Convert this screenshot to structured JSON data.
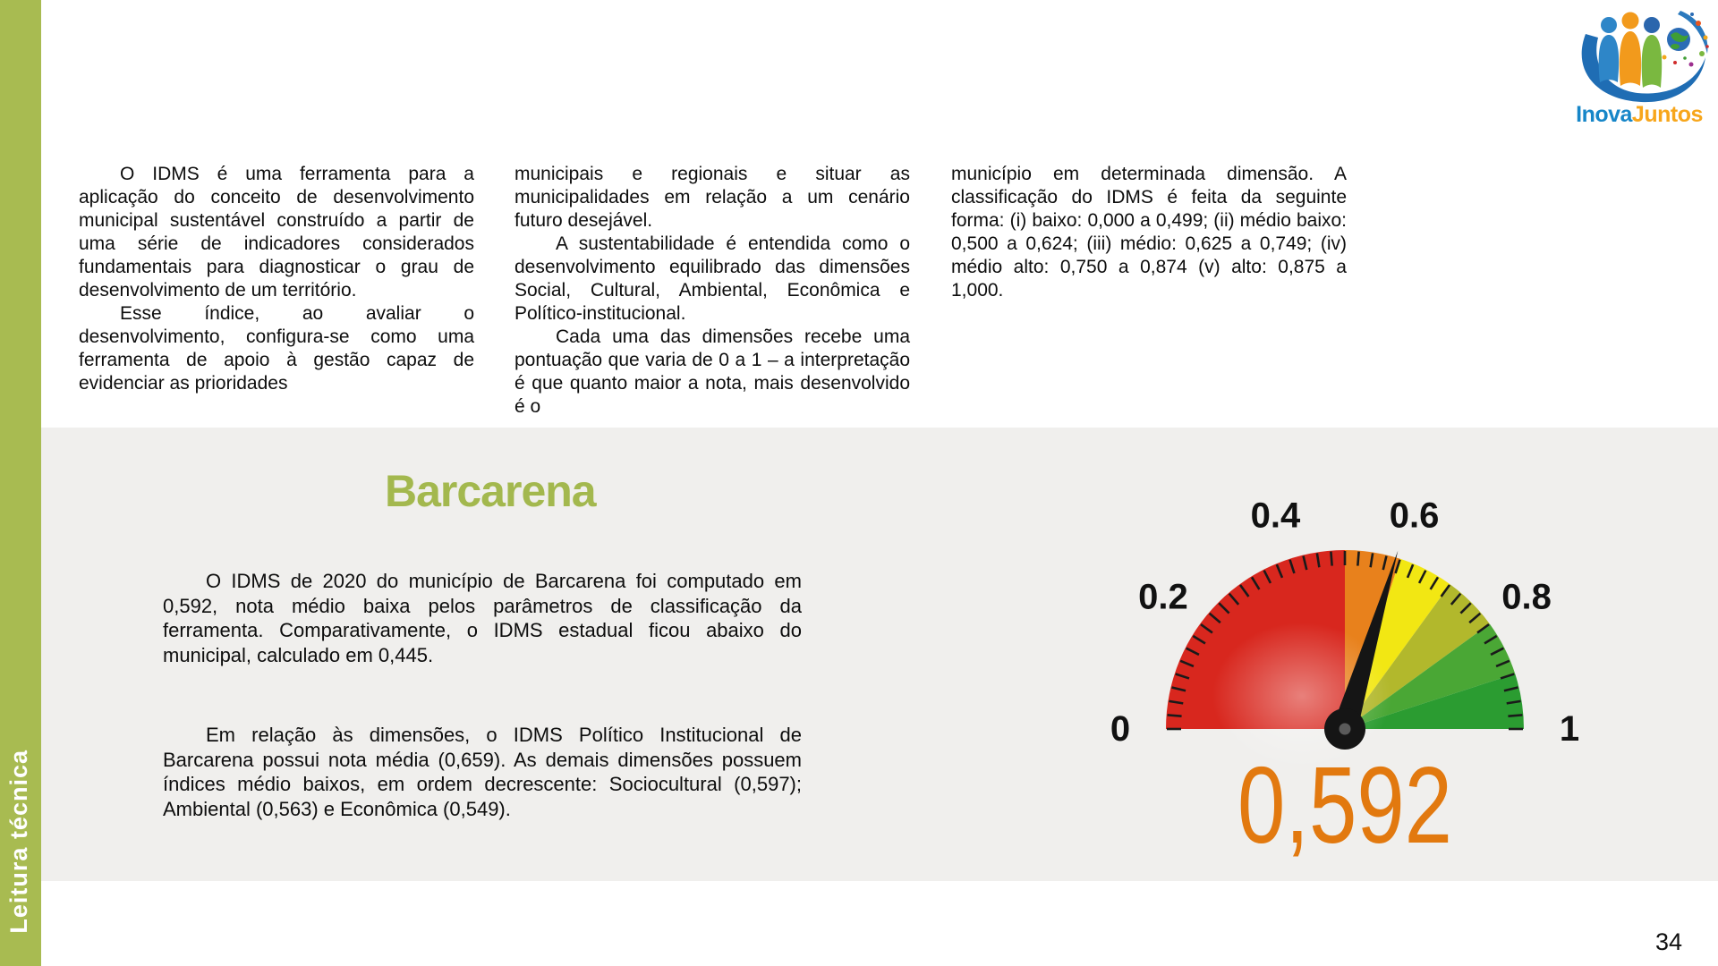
{
  "page": {
    "number": "34"
  },
  "sidebar": {
    "label": "Leitura técnica",
    "color": "#a8bb51"
  },
  "logo": {
    "name_part1": "Inova",
    "name_part2": "Juntos"
  },
  "intro": {
    "col1_p1": "O IDMS é uma ferramenta para a aplicação do conceito de desenvolvimento municipal sustentável construído a partir de uma série de indicadores considerados fundamentais para diagnosticar o grau de desenvolvimento de um território.",
    "col1_p2": "Esse índice, ao avaliar o desenvolvimento, configura-se como uma ferramenta de apoio à gestão capaz de evidenciar as prioridades",
    "col2_p1": "municipais e regionais e situar as municipalidades em relação a um cenário futuro desejável.",
    "col2_p2": "A sustentabilidade é entendida como o desenvolvimento equilibrado das dimensões Social, Cultural, Ambiental, Econômica e Político-institucional.",
    "col2_p3": "Cada uma das dimensões recebe uma pontuação que varia de 0 a 1 – a interpretação é que quanto maior a nota, mais desenvolvido é o",
    "col3_p1": "município em determinada dimensão. A classificação do IDMS é feita da seguinte forma: (i) baixo: 0,000 a 0,499; (ii) médio baixo: 0,500 a 0,624; (iii) médio: 0,625 a 0,749; (iv) médio alto: 0,750 a 0,874 (v) alto: 0,875 a 1,000."
  },
  "section": {
    "title": "Barcarena",
    "p1": "O IDMS de 2020 do município de Barcarena foi computado em 0,592, nota médio baixa pelos parâmetros de classificação da ferramenta. Comparativamente, o IDMS estadual ficou abaixo do municipal, calculado em 0,445.",
    "p2": "Em relação às dimensões, o IDMS Político Institucional de Barcarena possui nota média (0,659). As demais dimensões possuem índices médio baixos, em ordem decrescente: Sociocultural (0,597); Ambiental (0,563) e Econômica (0,549)."
  },
  "chart_data": {
    "type": "gauge",
    "title": "IDMS Barcarena 2020",
    "min": 0,
    "max": 1,
    "value": 0.592,
    "value_label": "0,592",
    "value_color": "#e2790f",
    "tick_step": 0.025,
    "axis_labels": [
      {
        "value": 0,
        "text": "0"
      },
      {
        "value": 0.2,
        "text": "0.2"
      },
      {
        "value": 0.4,
        "text": "0.4"
      },
      {
        "value": 0.6,
        "text": "0.6"
      },
      {
        "value": 0.8,
        "text": "0.8"
      },
      {
        "value": 1,
        "text": "1"
      }
    ],
    "segments": [
      {
        "from": 0,
        "to": 0.5,
        "color": "#d8271e"
      },
      {
        "from": 0.5,
        "to": 0.6,
        "color": "#e8811c"
      },
      {
        "from": 0.6,
        "to": 0.7,
        "color": "#f2e713"
      },
      {
        "from": 0.7,
        "to": 0.8,
        "color": "#b2b82c"
      },
      {
        "from": 0.8,
        "to": 0.9,
        "color": "#4aa735"
      },
      {
        "from": 0.9,
        "to": 1,
        "color": "#2b9c31"
      }
    ]
  }
}
